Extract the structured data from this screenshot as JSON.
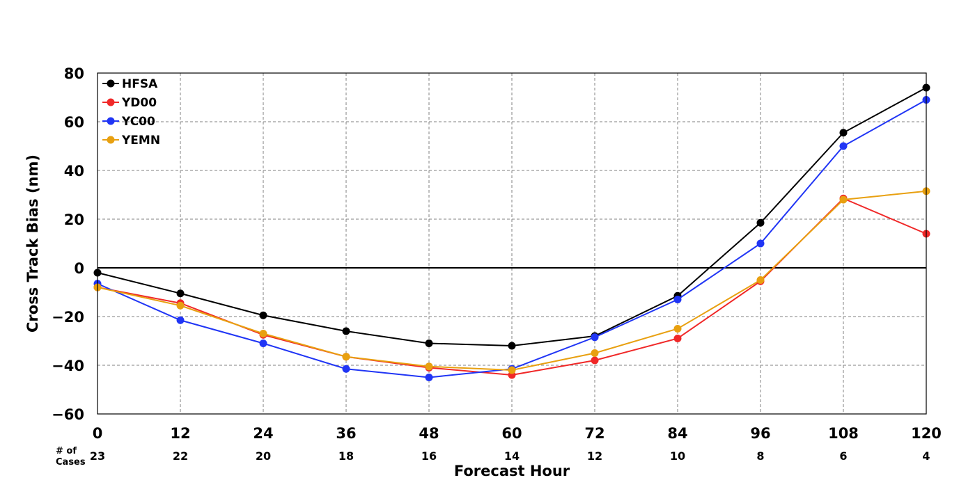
{
  "chart_data": {
    "type": "line",
    "title": "",
    "xlabel": "Forecast Hour",
    "ylabel": "Cross Track Bias (nm)",
    "xlim": [
      0,
      120
    ],
    "ylim": [
      -60,
      80
    ],
    "x_ticks": [
      "0",
      "12",
      "24",
      "36",
      "48",
      "60",
      "72",
      "84",
      "96",
      "108",
      "120"
    ],
    "y_ticks": [
      "80",
      "60",
      "40",
      "20",
      "0",
      "−20",
      "−40",
      "−60"
    ],
    "x": [
      0,
      12,
      24,
      36,
      48,
      60,
      72,
      84,
      96,
      108,
      120
    ],
    "grid": true,
    "legend_position": "top-left",
    "cases_header_line1": "# of",
    "cases_header_line2": "Cases",
    "cases": [
      "23",
      "22",
      "20",
      "18",
      "16",
      "14",
      "12",
      "10",
      "8",
      "6",
      "4"
    ],
    "series": [
      {
        "name": "HFSA",
        "color": "#000000",
        "values": [
          -2,
          -10.5,
          -19.5,
          -26,
          -31,
          -32,
          -28,
          -11.5,
          18.5,
          55.5,
          74
        ]
      },
      {
        "name": "YD00",
        "color": "#f02828",
        "values": [
          -8,
          -14.5,
          -27.5,
          -36.5,
          -41,
          -44,
          -38,
          -29,
          -5.5,
          28.5,
          14
        ]
      },
      {
        "name": "YC00",
        "color": "#2035f5",
        "values": [
          -6.5,
          -21.5,
          -31,
          -41.5,
          -45,
          -41.5,
          -28.5,
          -13,
          10,
          50,
          69
        ]
      },
      {
        "name": "YEMN",
        "color": "#e8a010",
        "values": [
          -8,
          -15.5,
          -27,
          -36.5,
          -40.5,
          -42,
          -35,
          -25,
          -5,
          28,
          31.5
        ]
      }
    ]
  }
}
